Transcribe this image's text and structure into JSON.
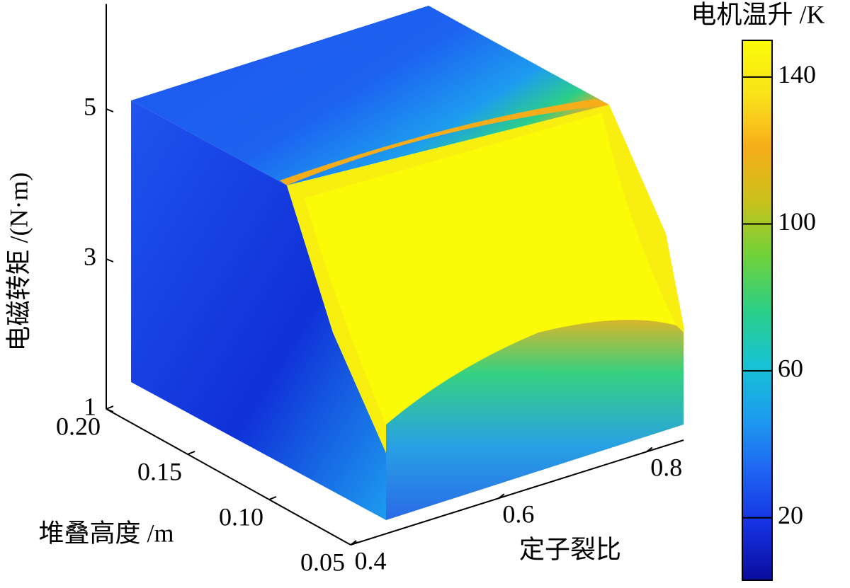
{
  "chart_data": {
    "type": "scatter3d",
    "xlabel": "定子裂比",
    "ylabel": "堆叠高度 /m",
    "zlabel": "电磁转矩 /(N·m)",
    "xlim": [
      0.4,
      0.85
    ],
    "xticks": [
      0.4,
      0.6,
      0.8
    ],
    "ylim": [
      0.05,
      0.2
    ],
    "yticks": [
      0.05,
      {
        "value": 0.1,
        "label": "0.10"
      },
      0.15,
      {
        "value": 0.2,
        "label": "0.20"
      }
    ],
    "zlim": [
      1,
      6.4
    ],
    "zticks": [
      1,
      3,
      5
    ],
    "colorbar_label": "电机温升 /K",
    "clim": [
      3,
      150
    ],
    "cticks": [
      20,
      60,
      100,
      140
    ],
    "colormap": [
      "#0a0c9c",
      "#1530e0",
      "#1f63f3",
      "#1d9cef",
      "#17c3d4",
      "#2bcf86",
      "#6fd23a",
      "#c8c21c",
      "#f7ad1a",
      "#f9e21a",
      "#fbfb08"
    ]
  }
}
